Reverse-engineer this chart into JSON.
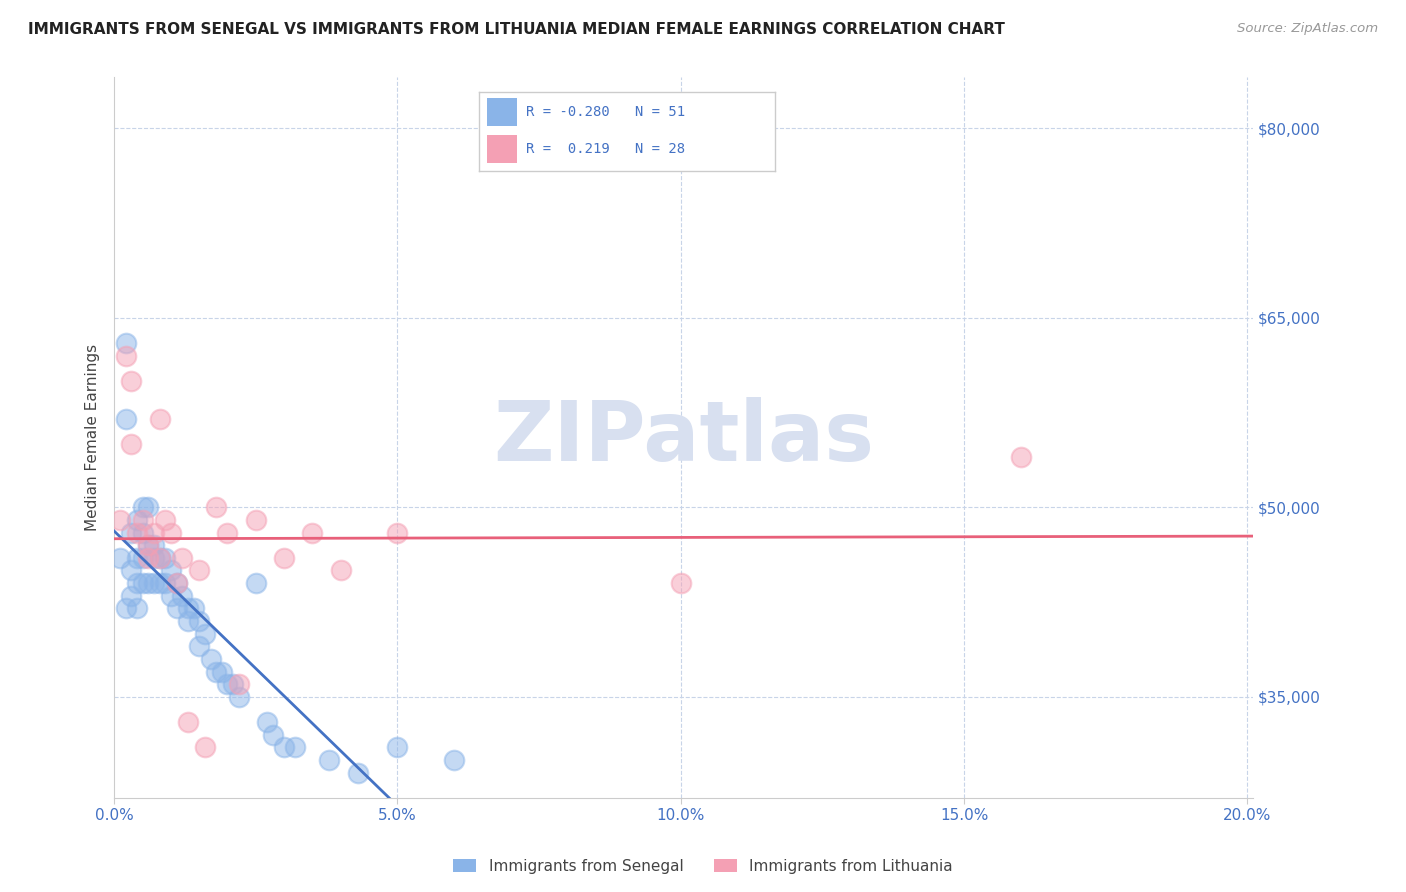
{
  "title": "IMMIGRANTS FROM SENEGAL VS IMMIGRANTS FROM LITHUANIA MEDIAN FEMALE EARNINGS CORRELATION CHART",
  "source": "Source: ZipAtlas.com",
  "ylabel": "Median Female Earnings",
  "xlim": [
    0.0,
    0.201
  ],
  "ylim": [
    27000,
    84000
  ],
  "yticks": [
    35000,
    50000,
    65000,
    80000
  ],
  "ytick_labels": [
    "$35,000",
    "$50,000",
    "$65,000",
    "$80,000"
  ],
  "xticks": [
    0.0,
    0.05,
    0.1,
    0.15,
    0.2
  ],
  "xtick_labels": [
    "0.0%",
    "5.0%",
    "10.0%",
    "15.0%",
    "20.0%"
  ],
  "color_senegal": "#8AB4E8",
  "color_lithuania": "#F4A0B4",
  "color_line_senegal": "#4472C4",
  "color_line_lithuania": "#E8607A",
  "color_axis_label": "#4472C4",
  "color_grid": "#C8D4E8",
  "background_color": "#FFFFFF",
  "watermark_text": "ZIPatlas",
  "watermark_color": "#D8E0F0",
  "senegal_x": [
    0.001,
    0.002,
    0.002,
    0.003,
    0.003,
    0.004,
    0.004,
    0.004,
    0.005,
    0.005,
    0.005,
    0.006,
    0.006,
    0.006,
    0.007,
    0.007,
    0.007,
    0.008,
    0.008,
    0.009,
    0.009,
    0.01,
    0.01,
    0.011,
    0.011,
    0.012,
    0.013,
    0.013,
    0.014,
    0.015,
    0.015,
    0.016,
    0.017,
    0.018,
    0.019,
    0.02,
    0.021,
    0.022,
    0.025,
    0.027,
    0.028,
    0.03,
    0.032,
    0.038,
    0.043,
    0.05,
    0.06,
    0.002,
    0.003,
    0.004,
    0.005
  ],
  "senegal_y": [
    46000,
    63000,
    57000,
    48000,
    45000,
    49000,
    46000,
    44000,
    50000,
    48000,
    44000,
    50000,
    47000,
    44000,
    47000,
    46000,
    44000,
    46000,
    44000,
    46000,
    44000,
    45000,
    43000,
    44000,
    42000,
    43000,
    42000,
    41000,
    42000,
    41000,
    39000,
    40000,
    38000,
    37000,
    37000,
    36000,
    36000,
    35000,
    44000,
    33000,
    32000,
    31000,
    31000,
    30000,
    29000,
    31000,
    30000,
    42000,
    43000,
    42000,
    46000
  ],
  "lithuania_x": [
    0.001,
    0.002,
    0.003,
    0.004,
    0.005,
    0.006,
    0.006,
    0.007,
    0.008,
    0.009,
    0.01,
    0.011,
    0.012,
    0.013,
    0.015,
    0.016,
    0.018,
    0.02,
    0.022,
    0.025,
    0.03,
    0.035,
    0.04,
    0.05,
    0.1,
    0.16,
    0.003,
    0.008
  ],
  "lithuania_y": [
    49000,
    62000,
    60000,
    48000,
    49000,
    47000,
    46000,
    48000,
    46000,
    49000,
    48000,
    44000,
    46000,
    33000,
    45000,
    31000,
    50000,
    48000,
    36000,
    49000,
    46000,
    48000,
    45000,
    48000,
    44000,
    54000,
    55000,
    57000
  ]
}
